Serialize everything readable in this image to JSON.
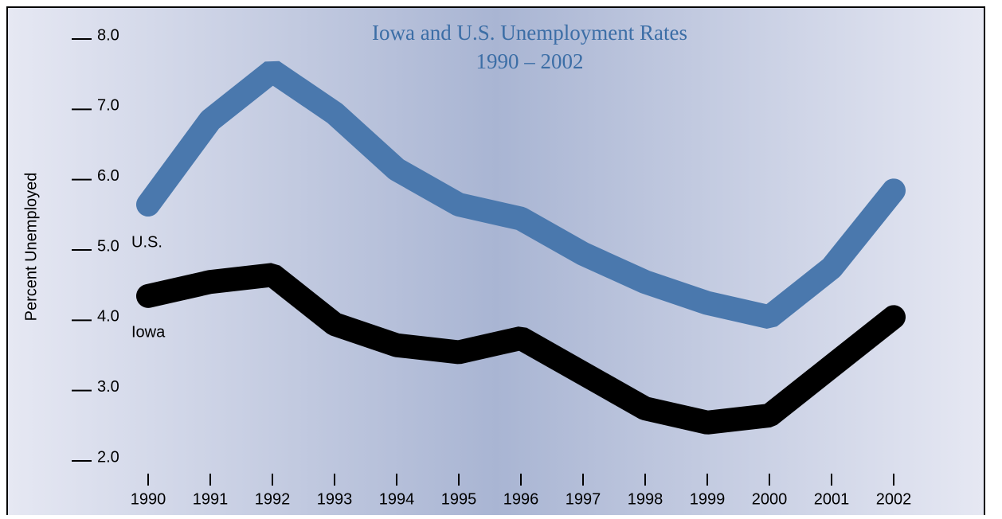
{
  "chart_data": {
    "type": "line",
    "title": "Iowa and U.S. Unemployment Rates",
    "subtitle": "1990 – 2002",
    "y_label": "Percent Unemployed",
    "categories": [
      "1990",
      "1991",
      "1992",
      "1993",
      "1994",
      "1995",
      "1996",
      "1997",
      "1998",
      "1999",
      "2000",
      "2001",
      "2002"
    ],
    "series": [
      {
        "name": "U.S.",
        "color": "#4a78ad",
        "values": [
          5.6,
          6.8,
          7.5,
          6.9,
          6.1,
          5.6,
          5.4,
          4.9,
          4.5,
          4.2,
          4.0,
          4.7,
          5.8
        ]
      },
      {
        "name": "Iowa",
        "color": "#000000",
        "values": [
          4.3,
          4.5,
          4.6,
          3.9,
          3.6,
          3.5,
          3.7,
          3.2,
          2.7,
          2.5,
          2.6,
          3.3,
          4.0
        ]
      }
    ],
    "ylim": [
      2,
      8
    ],
    "yticks": [
      {
        "value": 2,
        "label": "2.0"
      },
      {
        "value": 3,
        "label": "3.0"
      },
      {
        "value": 4,
        "label": "4.0"
      },
      {
        "value": 5,
        "label": "5.0"
      },
      {
        "value": 6,
        "label": "6.0"
      },
      {
        "value": 7,
        "label": "7.0"
      },
      {
        "value": 8,
        "label": "8.0"
      }
    ]
  }
}
